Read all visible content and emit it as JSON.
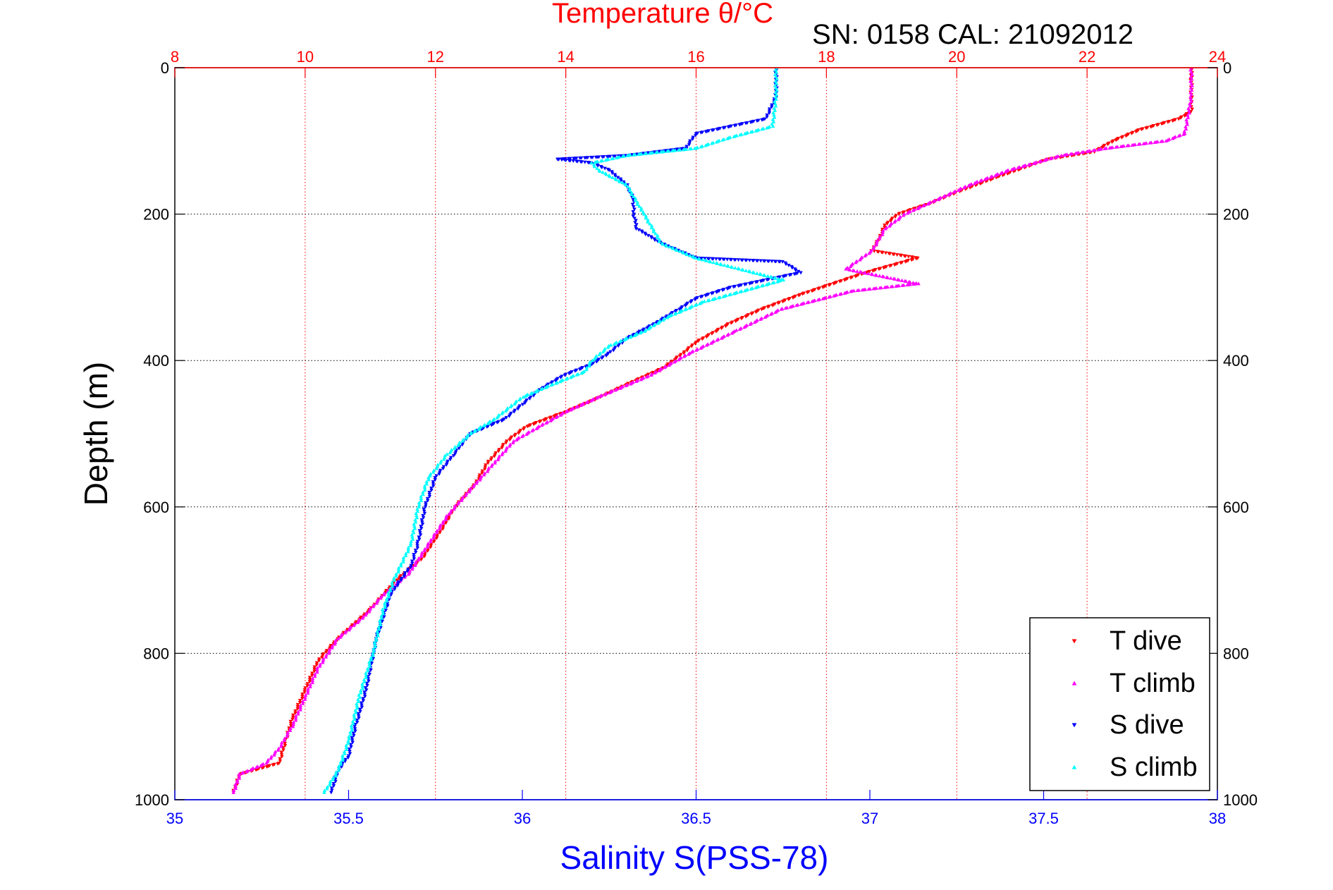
{
  "chart_data": {
    "type": "scatter",
    "title": "Temperature θ/°C",
    "subtitle": "SN: 0158  CAL: 21092012",
    "ylabel": "Depth (m)",
    "xlabel_bottom": "Salinity S(PSS-78)",
    "xlabel_top": "Temperature θ/°C",
    "ylim": [
      0,
      1000
    ],
    "y_reversed": true,
    "xlim_bottom": [
      35,
      38
    ],
    "xlim_top": [
      8,
      24
    ],
    "y_ticks": [
      0,
      200,
      400,
      600,
      800,
      1000
    ],
    "x_bottom_ticks": [
      "35",
      "35.5",
      "36",
      "36.5",
      "37",
      "37.5",
      "38"
    ],
    "x_top_ticks": [
      "8",
      "10",
      "12",
      "14",
      "16",
      "18",
      "20",
      "22",
      "24"
    ],
    "grid": true,
    "legend_position": "bottom-right",
    "colors": {
      "temperature_axis": "#ff0000",
      "salinity_axis": "#0000ff",
      "grid_top": "#ff0000",
      "grid_y": "#000000"
    },
    "series": [
      {
        "name": "T dive",
        "axis": "top",
        "color": "#ff0000",
        "marker": "triangle-down",
        "points": [
          [
            23.6,
            0
          ],
          [
            23.6,
            20
          ],
          [
            23.6,
            40
          ],
          [
            23.6,
            60
          ],
          [
            23.4,
            70
          ],
          [
            22.8,
            85
          ],
          [
            22.4,
            100
          ],
          [
            22.1,
            115
          ],
          [
            21.4,
            125
          ],
          [
            20.6,
            150
          ],
          [
            20.0,
            170
          ],
          [
            19.6,
            185
          ],
          [
            19.1,
            200
          ],
          [
            18.9,
            215
          ],
          [
            18.8,
            235
          ],
          [
            18.7,
            250
          ],
          [
            19.4,
            260
          ],
          [
            18.6,
            280
          ],
          [
            17.6,
            310
          ],
          [
            17.0,
            330
          ],
          [
            16.5,
            350
          ],
          [
            16.0,
            375
          ],
          [
            15.8,
            390
          ],
          [
            15.5,
            410
          ],
          [
            15.0,
            430
          ],
          [
            14.4,
            455
          ],
          [
            14.0,
            470
          ],
          [
            13.4,
            490
          ],
          [
            13.1,
            510
          ],
          [
            12.8,
            540
          ],
          [
            12.6,
            570
          ],
          [
            12.3,
            600
          ],
          [
            12.1,
            630
          ],
          [
            11.8,
            670
          ],
          [
            11.4,
            700
          ],
          [
            11.0,
            740
          ],
          [
            10.5,
            780
          ],
          [
            10.2,
            810
          ],
          [
            10.0,
            850
          ],
          [
            9.8,
            890
          ],
          [
            9.7,
            920
          ],
          [
            9.6,
            950
          ],
          [
            9.0,
            965
          ],
          [
            8.9,
            990
          ]
        ]
      },
      {
        "name": "T climb",
        "axis": "top",
        "color": "#ff00ff",
        "marker": "triangle-up",
        "points": [
          [
            23.6,
            0
          ],
          [
            23.6,
            40
          ],
          [
            23.5,
            90
          ],
          [
            23.2,
            100
          ],
          [
            22.3,
            110
          ],
          [
            21.6,
            120
          ],
          [
            20.8,
            140
          ],
          [
            20.2,
            160
          ],
          [
            19.7,
            180
          ],
          [
            19.2,
            200
          ],
          [
            18.9,
            220
          ],
          [
            18.7,
            250
          ],
          [
            18.3,
            275
          ],
          [
            19.4,
            295
          ],
          [
            18.4,
            305
          ],
          [
            17.3,
            330
          ],
          [
            16.6,
            360
          ],
          [
            15.9,
            390
          ],
          [
            15.3,
            420
          ],
          [
            14.5,
            450
          ],
          [
            14.0,
            470
          ],
          [
            13.6,
            490
          ],
          [
            13.2,
            510
          ],
          [
            12.9,
            540
          ],
          [
            12.6,
            570
          ],
          [
            12.2,
            610
          ],
          [
            11.9,
            650
          ],
          [
            11.6,
            690
          ],
          [
            11.2,
            720
          ],
          [
            10.9,
            750
          ],
          [
            10.5,
            780
          ],
          [
            10.2,
            820
          ],
          [
            10.0,
            860
          ],
          [
            9.8,
            900
          ],
          [
            9.6,
            930
          ],
          [
            9.4,
            950
          ],
          [
            9.0,
            965
          ],
          [
            8.9,
            990
          ]
        ]
      },
      {
        "name": "S dive",
        "axis": "bottom",
        "color": "#0000ff",
        "marker": "triangle-down",
        "points": [
          [
            36.73,
            0
          ],
          [
            36.73,
            40
          ],
          [
            36.7,
            70
          ],
          [
            36.5,
            90
          ],
          [
            36.47,
            110
          ],
          [
            36.3,
            120
          ],
          [
            36.1,
            125
          ],
          [
            36.2,
            130
          ],
          [
            36.25,
            140
          ],
          [
            36.3,
            160
          ],
          [
            36.32,
            180
          ],
          [
            36.32,
            200
          ],
          [
            36.33,
            220
          ],
          [
            36.4,
            240
          ],
          [
            36.5,
            260
          ],
          [
            36.75,
            265
          ],
          [
            36.8,
            280
          ],
          [
            36.6,
            300
          ],
          [
            36.5,
            315
          ],
          [
            36.45,
            330
          ],
          [
            36.38,
            350
          ],
          [
            36.3,
            370
          ],
          [
            36.25,
            390
          ],
          [
            36.2,
            405
          ],
          [
            36.12,
            420
          ],
          [
            36.05,
            440
          ],
          [
            36.0,
            460
          ],
          [
            35.95,
            480
          ],
          [
            35.85,
            500
          ],
          [
            35.8,
            530
          ],
          [
            35.75,
            560
          ],
          [
            35.72,
            600
          ],
          [
            35.7,
            650
          ],
          [
            35.68,
            680
          ],
          [
            35.62,
            720
          ],
          [
            35.58,
            780
          ],
          [
            35.55,
            850
          ],
          [
            35.52,
            900
          ],
          [
            35.5,
            940
          ],
          [
            35.47,
            960
          ],
          [
            35.45,
            990
          ]
        ]
      },
      {
        "name": "S climb",
        "axis": "bottom",
        "color": "#00ffff",
        "marker": "triangle-up",
        "points": [
          [
            36.73,
            0
          ],
          [
            36.73,
            40
          ],
          [
            36.72,
            80
          ],
          [
            36.6,
            95
          ],
          [
            36.5,
            110
          ],
          [
            36.3,
            120
          ],
          [
            36.2,
            130
          ],
          [
            36.22,
            140
          ],
          [
            36.3,
            160
          ],
          [
            36.35,
            200
          ],
          [
            36.4,
            240
          ],
          [
            36.5,
            260
          ],
          [
            36.75,
            290
          ],
          [
            36.52,
            320
          ],
          [
            36.42,
            340
          ],
          [
            36.35,
            360
          ],
          [
            36.25,
            380
          ],
          [
            36.2,
            400
          ],
          [
            36.18,
            415
          ],
          [
            36.1,
            430
          ],
          [
            36.0,
            450
          ],
          [
            35.92,
            480
          ],
          [
            35.85,
            500
          ],
          [
            35.78,
            530
          ],
          [
            35.73,
            560
          ],
          [
            35.7,
            600
          ],
          [
            35.68,
            650
          ],
          [
            35.63,
            700
          ],
          [
            35.6,
            740
          ],
          [
            35.57,
            800
          ],
          [
            35.53,
            860
          ],
          [
            35.5,
            920
          ],
          [
            35.47,
            960
          ],
          [
            35.43,
            990
          ]
        ]
      }
    ]
  }
}
